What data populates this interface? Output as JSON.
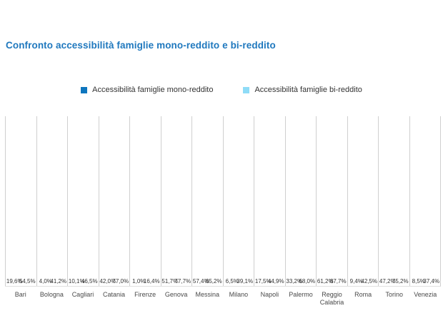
{
  "page": {
    "title": "Confronto accessibilità famiglie mono-reddito e bi-reddito"
  },
  "colors": {
    "title": "#1f78be",
    "mono_series": "#0e76be",
    "bi_series": "#8fdcf7",
    "gridline": "#cfcfcf",
    "label_text": "#333333",
    "axis_text": "#4a4a4a"
  },
  "chart_data": {
    "type": "bar",
    "title": "Confronto accessibilità famiglie mono-reddito e bi-reddito",
    "categories": [
      "Bari",
      "Bologna",
      "Cagliari",
      "Catania",
      "Firenze",
      "Genova",
      "Messina",
      "Milano",
      "Napoli",
      "Palermo",
      "Reggio Calabria",
      "Roma",
      "Torino",
      "Venezia"
    ],
    "series": [
      {
        "name": "Accessibilità famiglie mono-reddito",
        "color": "#0e76be",
        "values": [
          19.6,
          4.0,
          10.1,
          42.0,
          1.0,
          51.7,
          57.4,
          6.5,
          17.5,
          33.2,
          61.2,
          9.4,
          47.2,
          8.5
        ],
        "value_labels": [
          "19,6%",
          "4,0%",
          "10,1%",
          "42,0%",
          "1,0%",
          "51,7%",
          "57,4%",
          "6,5%",
          "17,5%",
          "33,2%",
          "61,2%",
          "9,4%",
          "47,2%",
          "8,5%"
        ]
      },
      {
        "name": "Accessibilità famiglie bi-reddito",
        "color": "#8fdcf7",
        "values": [
          54.5,
          41.2,
          46.5,
          77.0,
          16.4,
          77.7,
          85.2,
          39.1,
          44.9,
          68.0,
          87.7,
          42.5,
          75.2,
          37.4
        ],
        "value_labels": [
          "54,5%",
          "41,2%",
          "46,5%",
          "77,0%",
          "16,4%",
          "77,7%",
          "85,2%",
          "39,1%",
          "44,9%",
          "68,0%",
          "87,7%",
          "42,5%",
          "75,2%",
          "37,4%"
        ]
      }
    ],
    "value_suffix": "%",
    "xlabel": "",
    "ylabel": "",
    "ylim": [
      0,
      100
    ],
    "grid": "vertical-separators-only",
    "legend_position": "top-center",
    "y_axis_visible": false
  }
}
